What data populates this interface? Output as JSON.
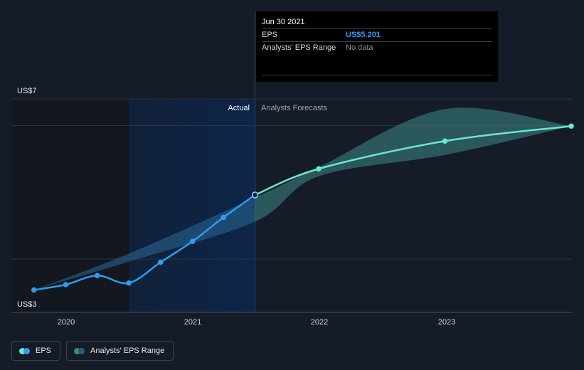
{
  "chart_data": {
    "type": "line",
    "title": "",
    "xlabel": "",
    "ylabel": "",
    "ylim": [
      3,
      7
    ],
    "y_tick_labels": [
      "US$7",
      "US$3"
    ],
    "x_tick_labels": [
      "2020",
      "2021",
      "2022",
      "2023"
    ],
    "sections": {
      "actual": "Actual",
      "forecast": "Analysts Forecasts"
    },
    "series": [
      {
        "name": "EPS",
        "kind": "actual",
        "x": [
          "2019-09-30",
          "2019-12-31",
          "2020-03-31",
          "2020-06-30",
          "2020-09-30",
          "2020-12-31",
          "2021-03-31",
          "2021-06-30"
        ],
        "values": [
          3.42,
          3.52,
          3.69,
          3.55,
          3.94,
          4.33,
          4.78,
          5.2
        ]
      },
      {
        "name": "EPS",
        "kind": "forecast",
        "x": [
          "2021-06-30",
          "2021-12-31",
          "2022-12-31",
          "2023-12-31"
        ],
        "values": [
          5.2,
          5.69,
          6.21,
          6.49
        ]
      },
      {
        "name": "Analysts' EPS Range",
        "kind": "range",
        "x": [
          "2019-09-30",
          "2020-06-30",
          "2021-06-30",
          "2021-12-31",
          "2022-12-31",
          "2023-12-31"
        ],
        "low": [
          3.42,
          3.95,
          4.7,
          5.55,
          5.95,
          6.49
        ],
        "high": [
          3.42,
          4.1,
          5.15,
          5.72,
          6.81,
          6.49
        ]
      }
    ],
    "legend": [
      "EPS",
      "Analysts' EPS Range"
    ],
    "legend_position": "bottom-left",
    "grid": true
  },
  "tooltip": {
    "date": "Jun 30 2021",
    "rows": [
      {
        "label": "EPS",
        "value": "US$5.201"
      },
      {
        "label": "Analysts' EPS Range",
        "value": "No data"
      }
    ]
  },
  "colors": {
    "background": "#151b27",
    "eps_actual": "#2e9cf0",
    "eps_forecast": "#6ce6d2",
    "range_fill": "#3d8a86",
    "actual_band": "#0d2548"
  }
}
